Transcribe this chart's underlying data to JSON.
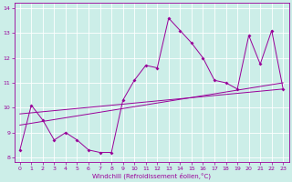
{
  "xlabel": "Windchill (Refroidissement éolien,°C)",
  "bg_color": "#cceee8",
  "line_color": "#990099",
  "grid_color": "#ffffff",
  "xlim": [
    -0.5,
    23.5
  ],
  "ylim": [
    7.8,
    14.2
  ],
  "yticks": [
    8,
    9,
    10,
    11,
    12,
    13,
    14
  ],
  "xticks": [
    0,
    1,
    2,
    3,
    4,
    5,
    6,
    7,
    8,
    9,
    10,
    11,
    12,
    13,
    14,
    15,
    16,
    17,
    18,
    19,
    20,
    21,
    22,
    23
  ],
  "line1_y": [
    8.3,
    10.1,
    9.5,
    8.7,
    9.0,
    8.7,
    8.3,
    8.2,
    8.2,
    10.3,
    11.1,
    11.7,
    11.6,
    13.6,
    13.1,
    12.6,
    12.0,
    11.1,
    11.0,
    10.75,
    12.9,
    11.75,
    13.1,
    10.75
  ],
  "reg1_y0": 9.3,
  "reg1_y1": 11.0,
  "reg2_y0": 9.75,
  "reg2_y1": 10.75
}
